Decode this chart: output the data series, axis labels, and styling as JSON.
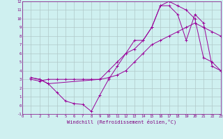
{
  "xlabel": "Windchill (Refroidissement éolien,°C)",
  "bg_color": "#cff0f0",
  "grid_color": "#b0c8c8",
  "line_color": "#990099",
  "xlim": [
    0,
    23
  ],
  "ylim": [
    -1,
    12
  ],
  "xticks": [
    0,
    1,
    2,
    3,
    4,
    5,
    6,
    7,
    8,
    9,
    10,
    11,
    12,
    13,
    14,
    15,
    16,
    17,
    18,
    19,
    20,
    21,
    22,
    23
  ],
  "yticks": [
    -1,
    0,
    1,
    2,
    3,
    4,
    5,
    6,
    7,
    8,
    9,
    10,
    11,
    12
  ],
  "series1_x": [
    1,
    2,
    3,
    4,
    5,
    6,
    7,
    8,
    9,
    10,
    11,
    12,
    13,
    14,
    15,
    16,
    17,
    18,
    19,
    20,
    21,
    22,
    23
  ],
  "series1_y": [
    3.0,
    2.8,
    3.0,
    3.0,
    3.0,
    3.0,
    3.0,
    3.0,
    3.0,
    3.2,
    3.5,
    4.0,
    5.0,
    6.0,
    7.0,
    7.5,
    8.0,
    8.5,
    9.0,
    9.5,
    9.0,
    8.5,
    8.0
  ],
  "series2_x": [
    1,
    2,
    3,
    4,
    5,
    6,
    7,
    8,
    9,
    10,
    11,
    12,
    13,
    14,
    15,
    16,
    17,
    18,
    19,
    20,
    21,
    22,
    23
  ],
  "series2_y": [
    3.2,
    3.0,
    2.5,
    1.5,
    0.5,
    0.2,
    0.1,
    -0.7,
    1.2,
    3.0,
    4.5,
    6.0,
    7.5,
    7.5,
    9.0,
    11.5,
    12.0,
    11.5,
    11.0,
    10.0,
    5.5,
    5.0,
    4.0
  ],
  "series3_x": [
    1,
    2,
    3,
    9,
    10,
    11,
    12,
    13,
    14,
    15,
    16,
    17,
    18,
    19,
    20,
    21,
    22,
    23
  ],
  "series3_y": [
    3.2,
    3.0,
    2.5,
    3.0,
    4.0,
    5.0,
    6.0,
    6.5,
    7.5,
    9.0,
    11.5,
    11.5,
    10.5,
    7.5,
    10.5,
    9.5,
    4.5,
    4.0
  ]
}
